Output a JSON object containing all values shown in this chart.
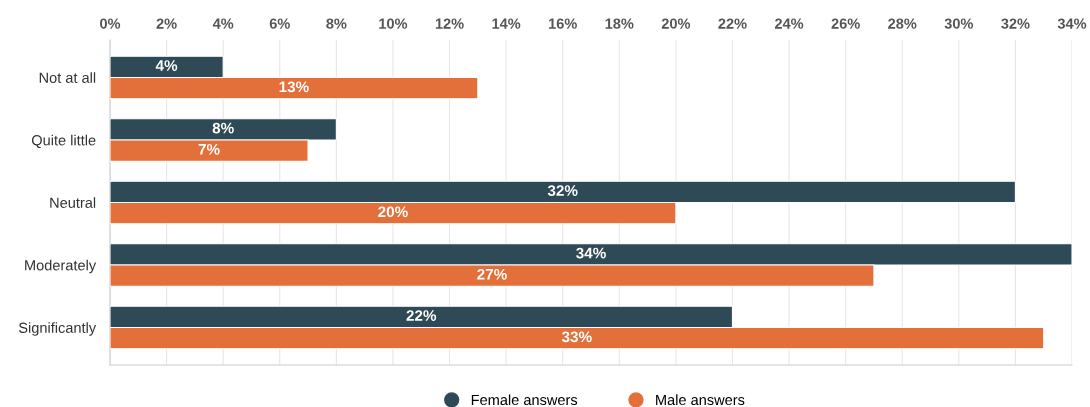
{
  "chart_data": {
    "type": "bar",
    "orientation": "horizontal",
    "categories": [
      "Not at all",
      "Quite little",
      "Neutral",
      "Moderately",
      "Significantly"
    ],
    "series": [
      {
        "name": "Female answers",
        "color": "#2e4a56",
        "values": [
          4,
          8,
          32,
          34,
          22
        ],
        "value_labels": [
          "4%",
          "8%",
          "32%",
          "34%",
          "22%"
        ]
      },
      {
        "name": "Male answers",
        "color": "#e3703a",
        "values": [
          13,
          7,
          20,
          27,
          33
        ],
        "value_labels": [
          "13%",
          "7%",
          "20%",
          "27%",
          "33%"
        ]
      }
    ],
    "xlim": [
      0,
      34
    ],
    "xticks": [
      {
        "value": 0,
        "label": "0%"
      },
      {
        "value": 2,
        "label": "2%"
      },
      {
        "value": 4,
        "label": "4%"
      },
      {
        "value": 6,
        "label": "6%"
      },
      {
        "value": 8,
        "label": "8%"
      },
      {
        "value": 10,
        "label": "10%"
      },
      {
        "value": 12,
        "label": "12%"
      },
      {
        "value": 14,
        "label": "14%"
      },
      {
        "value": 16,
        "label": "16%"
      },
      {
        "value": 18,
        "label": "18%"
      },
      {
        "value": 20,
        "label": "20%"
      },
      {
        "value": 22,
        "label": "22%"
      },
      {
        "value": 24,
        "label": "24%"
      },
      {
        "value": 26,
        "label": "26%"
      },
      {
        "value": 28,
        "label": "28%"
      },
      {
        "value": 30,
        "label": "30%"
      },
      {
        "value": 32,
        "label": "32%"
      },
      {
        "value": 34,
        "label": "34%"
      }
    ],
    "grid": "x",
    "legend": "bottom"
  }
}
